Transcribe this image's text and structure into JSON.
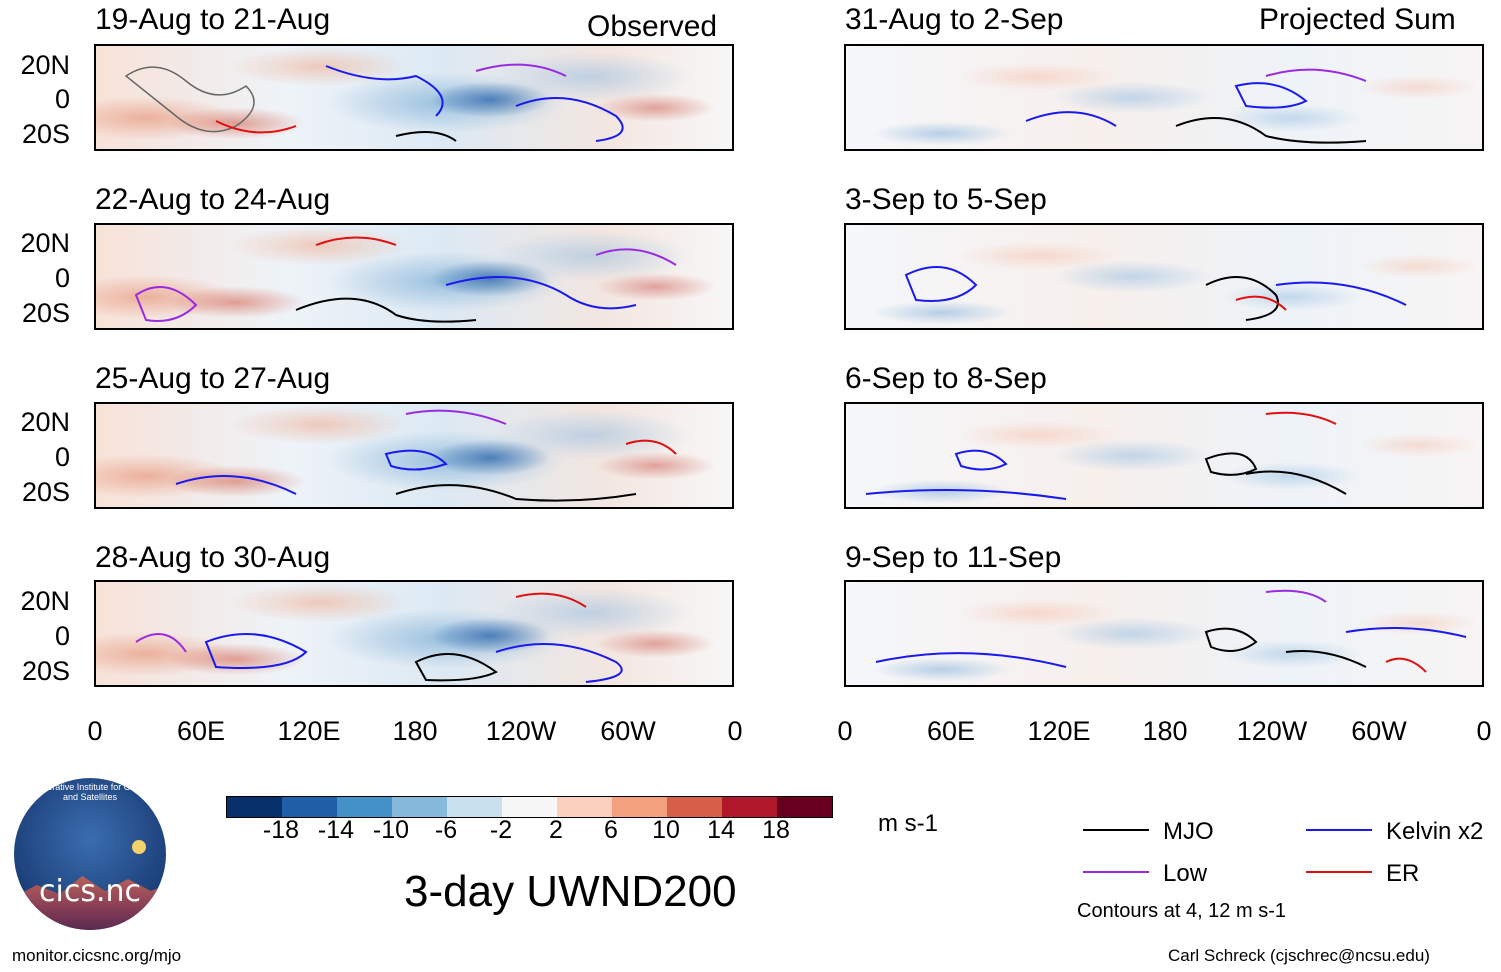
{
  "left_header": "Observed",
  "right_header": "Projected Sum",
  "observed_panels": [
    {
      "title": "19-Aug to 21-Aug"
    },
    {
      "title": "22-Aug to 24-Aug"
    },
    {
      "title": "25-Aug to 27-Aug"
    },
    {
      "title": "28-Aug to 30-Aug"
    }
  ],
  "projected_panels": [
    {
      "title": "31-Aug to 2-Sep"
    },
    {
      "title": "3-Sep to 5-Sep"
    },
    {
      "title": "6-Sep to 8-Sep"
    },
    {
      "title": "9-Sep to 11-Sep"
    }
  ],
  "lat_labels": [
    "20N",
    "0",
    "20S"
  ],
  "lon_labels": [
    "0",
    "60E",
    "120E",
    "180",
    "120W",
    "60W",
    "0"
  ],
  "colorbar": {
    "ticks": [
      "-18",
      "-14",
      "-10",
      "-6",
      "-2",
      "2",
      "6",
      "10",
      "14",
      "18"
    ],
    "colors": [
      "#08306b",
      "#1f5fa8",
      "#4391c6",
      "#86b9da",
      "#c9e0ef",
      "#f7f7f7",
      "#fbd0bc",
      "#f3a07f",
      "#d65f4a",
      "#b2182b",
      "#67001f"
    ],
    "units": "m s-1"
  },
  "main_title": "3-day UWND200",
  "legend": [
    {
      "label": "MJO",
      "color": "#000000"
    },
    {
      "label": "Kelvin x2",
      "color": "#1a1aee"
    },
    {
      "label": "Low",
      "color": "#9a2be0"
    },
    {
      "label": "ER",
      "color": "#e01010"
    }
  ],
  "contour_note": "Contours at 4, 12 m s-1",
  "logo": {
    "text": "cics.nc",
    "arc_text": "Cooperative Institute for Climate and Satellites"
  },
  "footer_left": "monitor.cicsnc.org/mjo",
  "footer_right": "Carl Schreck (cjschrec@ncsu.edu)"
}
